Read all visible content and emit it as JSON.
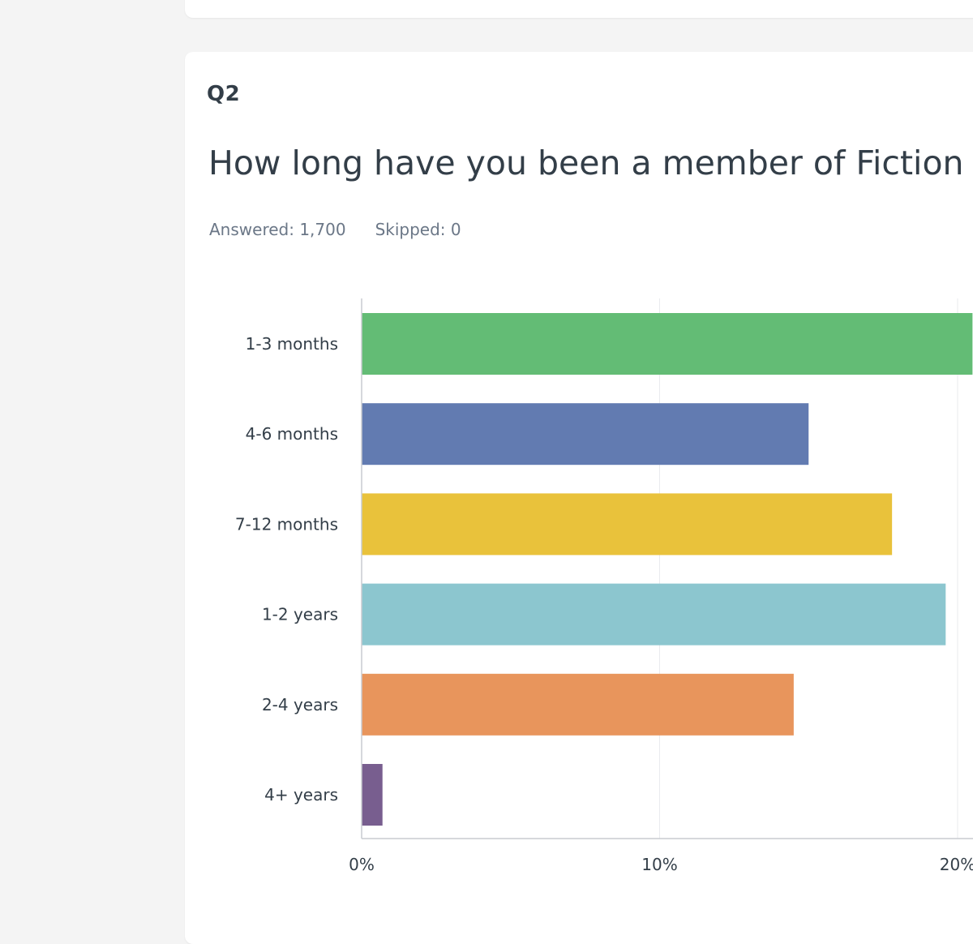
{
  "question": {
    "number": "Q2",
    "title": "How long have you been a member of Fiction P",
    "answered": "Answered: 1,700",
    "skipped": "Skipped: 0"
  },
  "chart_data": {
    "type": "bar",
    "orientation": "horizontal",
    "categories": [
      "1-3 months",
      "4-6 months",
      "7-12 months",
      "1-2 years",
      "2-4 years",
      "4+ years"
    ],
    "values": [
      20.5,
      15.0,
      17.8,
      19.6,
      14.5,
      0.7
    ],
    "colors": [
      "#63bc75",
      "#627bb1",
      "#e9c23b",
      "#8cc6cf",
      "#e8955c",
      "#785e8f"
    ],
    "x_ticks": [
      "0%",
      "10%",
      "20%"
    ],
    "xlim": [
      0,
      20
    ],
    "unit": "%",
    "grid": true
  }
}
